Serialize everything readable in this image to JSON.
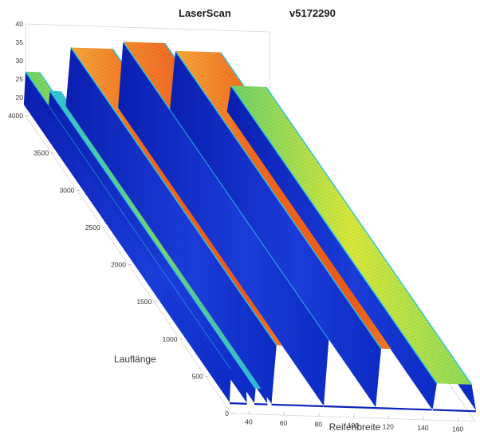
{
  "titles": {
    "left": "LaserScan",
    "right": "v5172290"
  },
  "chart_data": {
    "type": "surface",
    "title": "LaserScan",
    "subtitle": "v5172290",
    "xlabel": "Reifenbreite",
    "ylabel": "Lauflänge",
    "zlabel": "",
    "xlim": [
      30,
      170
    ],
    "ylim": [
      0,
      4000
    ],
    "zlim": [
      15,
      40
    ],
    "x_ticks": [
      "40",
      "60",
      "80",
      "100",
      "120",
      "140",
      "160"
    ],
    "y_ticks": [
      "0",
      "500",
      "1000",
      "1500",
      "2000",
      "2500",
      "3000",
      "3500",
      "4000"
    ],
    "z_ticks": [
      "20",
      "25",
      "30",
      "35",
      "40"
    ],
    "colormap": "jet",
    "ribs": [
      {
        "x_from": 30,
        "x_to": 38,
        "height": 27
      },
      {
        "x_from": 44,
        "x_to": 50,
        "height": 22
      },
      {
        "x_from": 56,
        "x_to": 80,
        "height": 34
      },
      {
        "x_from": 86,
        "x_to": 110,
        "height": 36
      },
      {
        "x_from": 116,
        "x_to": 142,
        "height": 34
      },
      {
        "x_from": 148,
        "x_to": 168,
        "height": 25
      }
    ]
  }
}
